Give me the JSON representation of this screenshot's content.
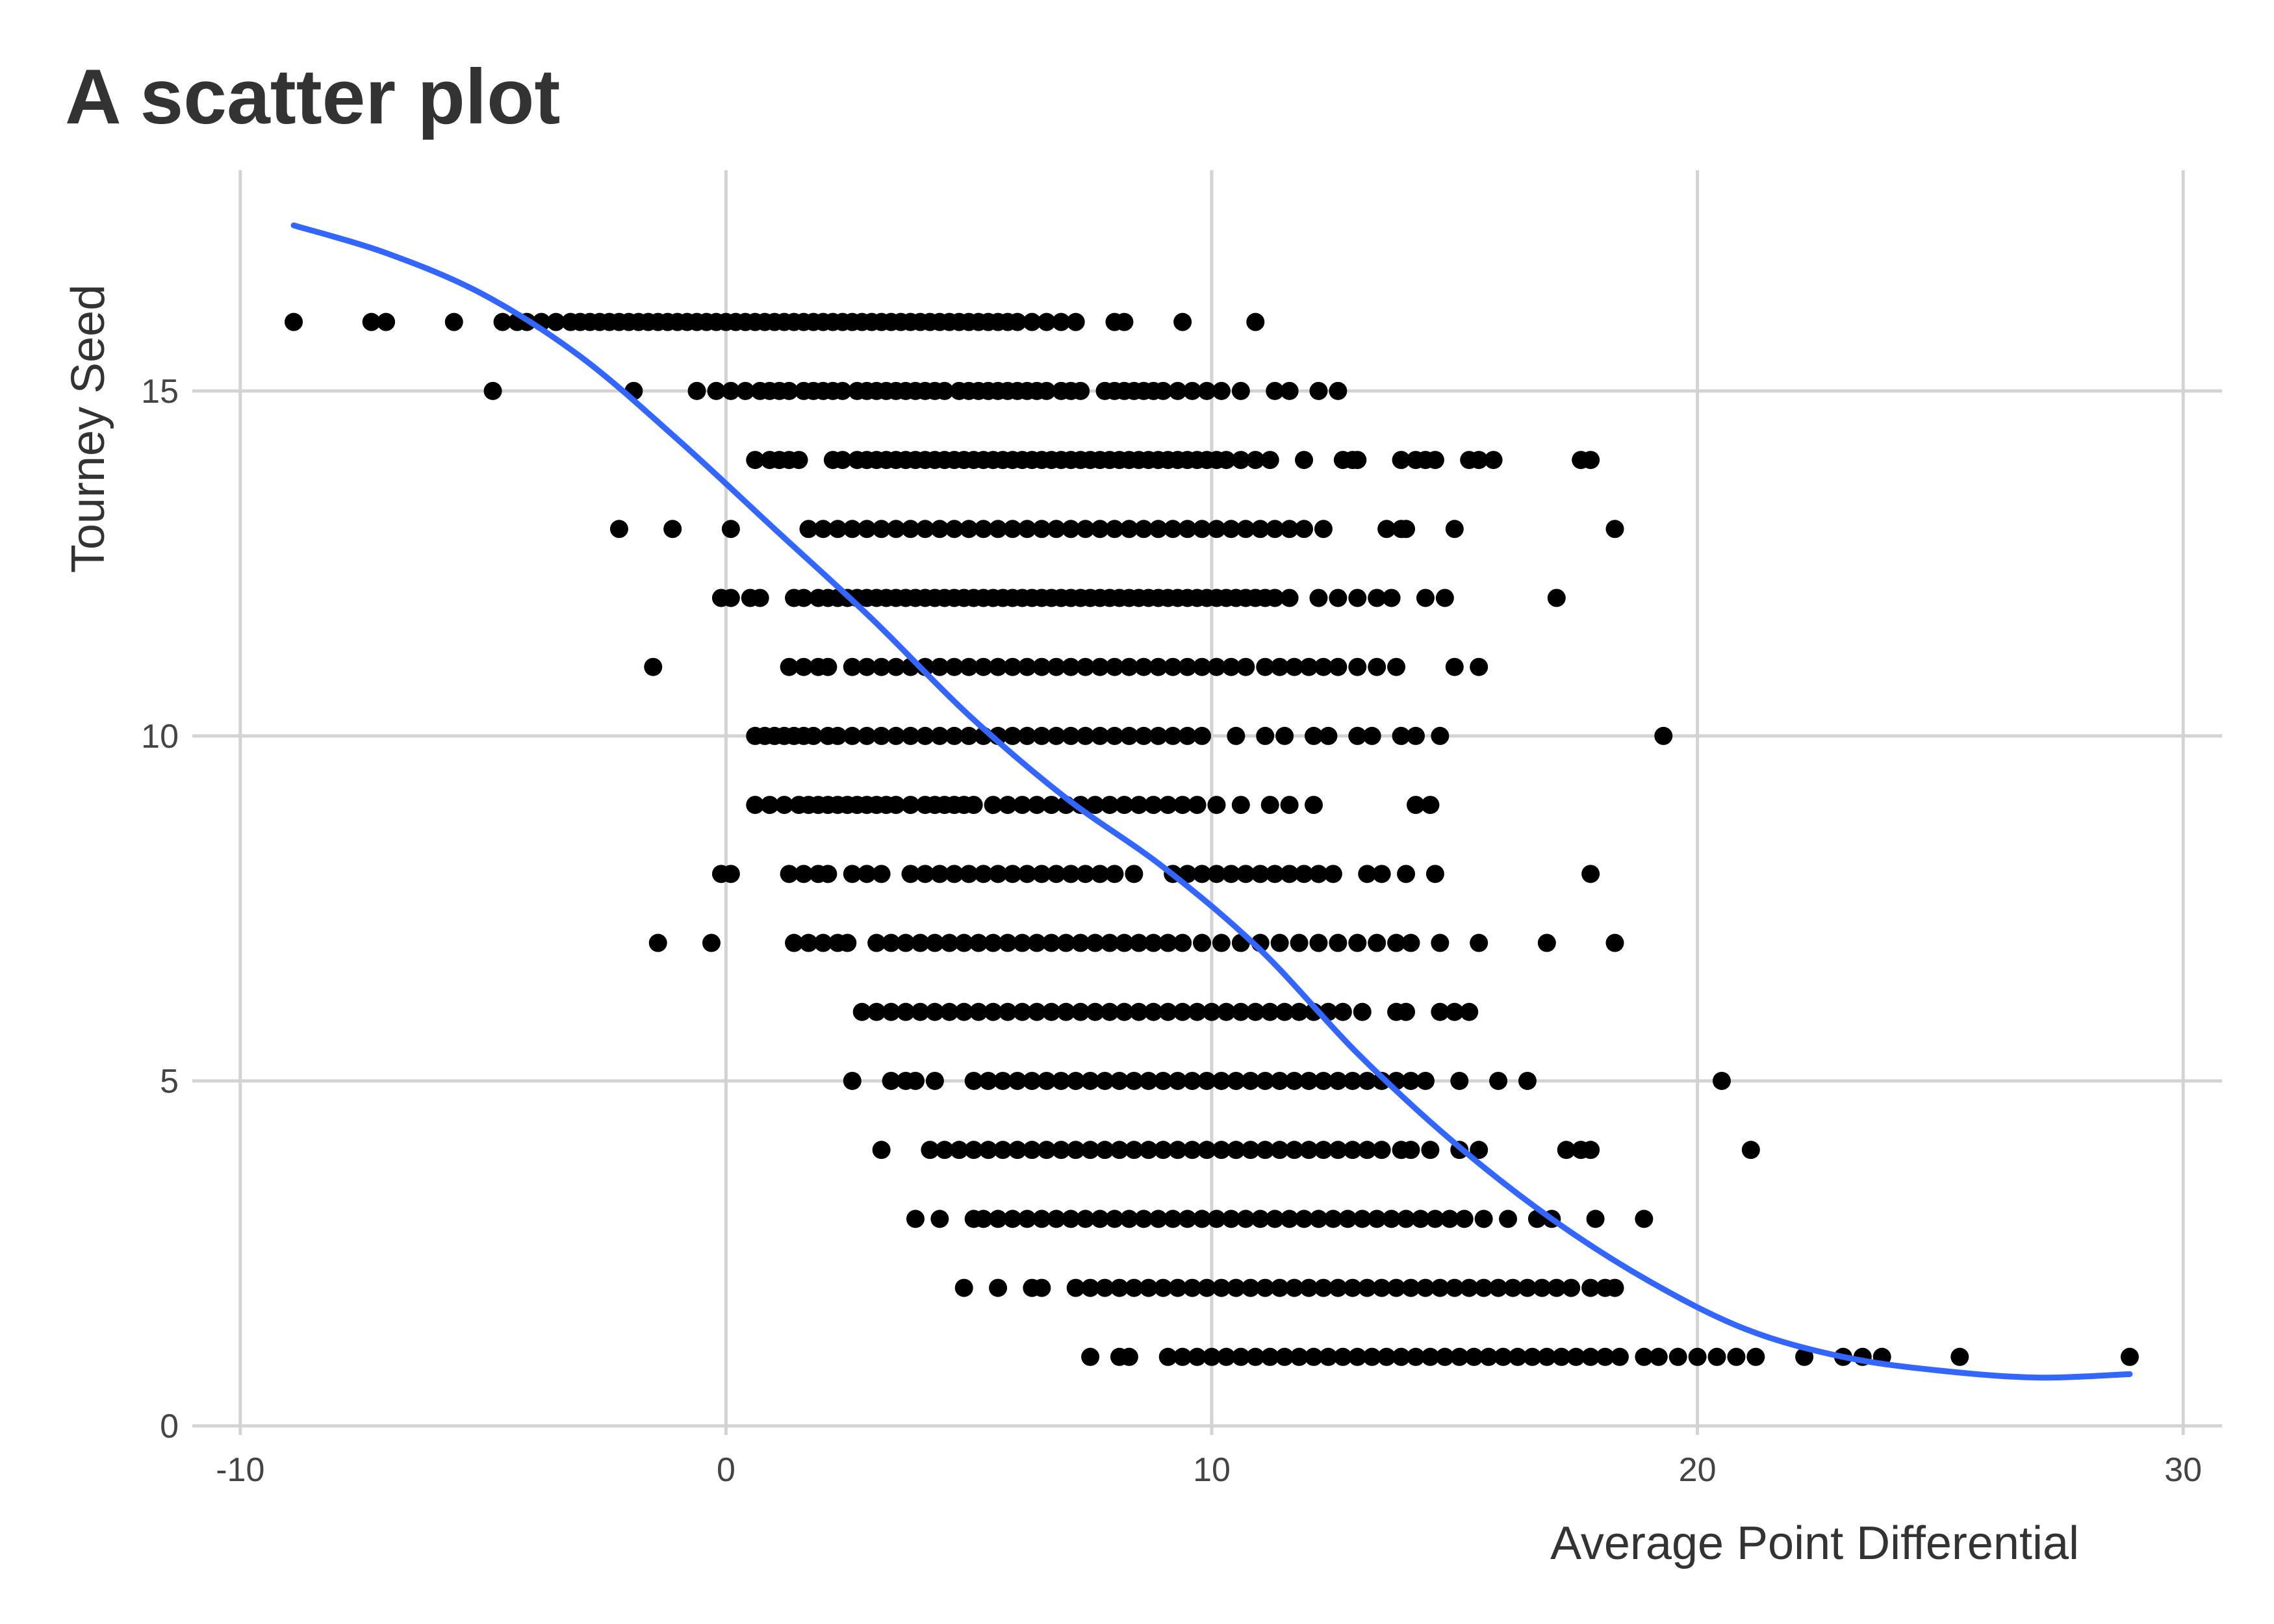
{
  "chart_data": {
    "type": "scatter",
    "title": "A scatter plot",
    "xlabel": "Average Point Differential",
    "ylabel": "Tourney Seed",
    "xlim": [
      -10.8,
      30.8
    ],
    "ylim": [
      0,
      18.2
    ],
    "x_ticks": [
      {
        "value": -10,
        "label": "-10"
      },
      {
        "value": 0,
        "label": "0"
      },
      {
        "value": 10,
        "label": "10"
      },
      {
        "value": 20,
        "label": "20"
      },
      {
        "value": 30,
        "label": "30"
      }
    ],
    "y_ticks": [
      {
        "value": 0,
        "label": "0"
      },
      {
        "value": 5,
        "label": "5"
      },
      {
        "value": 10,
        "label": "10"
      },
      {
        "value": 15,
        "label": "15"
      }
    ],
    "grid": true,
    "legend": "none",
    "point_color": "#000000",
    "trend_color": "#3366ff",
    "points_by_seed": [
      {
        "seed": 16,
        "x": [
          -8.9,
          -7.3,
          -7.0,
          -5.6,
          -4.6,
          -4.3,
          -4.1,
          -3.8,
          -3.5,
          -3.2,
          -3.0,
          -2.8,
          -2.6,
          -2.4,
          -2.2,
          -2.0,
          -1.8,
          -1.6,
          -1.4,
          -1.2,
          -1.0,
          -0.8,
          -0.6,
          -0.4,
          -0.2,
          0.0,
          0.2,
          0.4,
          0.6,
          0.8,
          1.0,
          1.2,
          1.4,
          1.6,
          1.8,
          2.0,
          2.2,
          2.4,
          2.6,
          2.8,
          3.0,
          3.2,
          3.4,
          3.6,
          3.8,
          4.0,
          4.2,
          4.4,
          4.6,
          4.8,
          5.0,
          5.2,
          5.4,
          5.6,
          5.8,
          6.0,
          6.3,
          6.6,
          6.9,
          7.2,
          8.0,
          8.2,
          9.4,
          10.9
        ]
      },
      {
        "seed": 15,
        "x": [
          -4.8,
          -1.9,
          -0.6,
          -0.2,
          0.1,
          0.4,
          0.7,
          0.9,
          1.1,
          1.3,
          1.6,
          1.8,
          2.0,
          2.2,
          2.4,
          2.7,
          2.9,
          3.1,
          3.3,
          3.5,
          3.7,
          3.9,
          4.1,
          4.3,
          4.5,
          4.8,
          5.0,
          5.2,
          5.4,
          5.6,
          5.8,
          6.0,
          6.2,
          6.4,
          6.6,
          6.9,
          7.1,
          7.3,
          7.8,
          8.0,
          8.2,
          8.4,
          8.6,
          8.8,
          9.0,
          9.3,
          9.6,
          9.9,
          10.2,
          10.6,
          11.3,
          11.6,
          12.2,
          12.6
        ]
      },
      {
        "seed": 14,
        "x": [
          0.6,
          0.9,
          1.1,
          1.3,
          1.5,
          2.2,
          2.4,
          2.7,
          2.9,
          3.1,
          3.3,
          3.5,
          3.7,
          3.9,
          4.1,
          4.3,
          4.5,
          4.7,
          4.9,
          5.1,
          5.3,
          5.5,
          5.7,
          5.9,
          6.1,
          6.3,
          6.5,
          6.7,
          6.9,
          7.1,
          7.3,
          7.5,
          7.7,
          7.9,
          8.1,
          8.3,
          8.5,
          8.7,
          8.9,
          9.1,
          9.3,
          9.5,
          9.7,
          9.9,
          10.1,
          10.3,
          10.6,
          10.9,
          11.2,
          11.9,
          12.7,
          12.9,
          13.0,
          13.9,
          14.2,
          14.4,
          14.6,
          15.3,
          15.5,
          15.8,
          17.6,
          17.8
        ]
      },
      {
        "seed": 13,
        "x": [
          -2.2,
          -1.1,
          0.1,
          1.7,
          2.0,
          2.3,
          2.6,
          2.9,
          3.2,
          3.5,
          3.8,
          4.1,
          4.4,
          4.7,
          5.0,
          5.3,
          5.6,
          5.9,
          6.2,
          6.5,
          6.8,
          7.1,
          7.4,
          7.7,
          8.0,
          8.3,
          8.6,
          8.9,
          9.2,
          9.5,
          9.8,
          10.1,
          10.4,
          10.7,
          11.0,
          11.3,
          11.6,
          11.9,
          12.3,
          13.6,
          13.9,
          14.0,
          15.0,
          18.3
        ]
      },
      {
        "seed": 12,
        "x": [
          -0.1,
          0.1,
          0.5,
          0.7,
          1.4,
          1.6,
          1.9,
          2.1,
          2.3,
          2.5,
          2.7,
          2.9,
          3.1,
          3.3,
          3.5,
          3.7,
          3.9,
          4.1,
          4.3,
          4.5,
          4.7,
          4.9,
          5.1,
          5.3,
          5.5,
          5.7,
          5.9,
          6.1,
          6.3,
          6.5,
          6.7,
          6.9,
          7.1,
          7.3,
          7.5,
          7.7,
          7.9,
          8.1,
          8.3,
          8.5,
          8.7,
          8.9,
          9.1,
          9.3,
          9.5,
          9.7,
          9.9,
          10.1,
          10.3,
          10.5,
          10.7,
          10.9,
          11.1,
          11.3,
          11.6,
          12.2,
          12.6,
          13.0,
          13.4,
          13.7,
          14.4,
          14.8,
          17.1
        ]
      },
      {
        "seed": 11,
        "x": [
          -1.5,
          1.3,
          1.6,
          1.9,
          2.1,
          2.6,
          2.9,
          3.2,
          3.5,
          3.8,
          4.1,
          4.4,
          4.7,
          5.0,
          5.3,
          5.6,
          5.9,
          6.2,
          6.5,
          6.8,
          7.1,
          7.4,
          7.7,
          8.0,
          8.3,
          8.6,
          8.9,
          9.2,
          9.5,
          9.8,
          10.1,
          10.4,
          10.7,
          11.1,
          11.4,
          11.7,
          12.0,
          12.3,
          12.6,
          13.0,
          13.4,
          13.8,
          15.0,
          15.5
        ]
      },
      {
        "seed": 10,
        "x": [
          0.6,
          0.8,
          1.0,
          1.2,
          1.4,
          1.6,
          1.8,
          2.1,
          2.3,
          2.6,
          2.9,
          3.2,
          3.5,
          3.8,
          4.1,
          4.4,
          4.7,
          5.0,
          5.3,
          5.6,
          5.9,
          6.2,
          6.5,
          6.8,
          7.1,
          7.4,
          7.7,
          8.0,
          8.3,
          8.6,
          8.9,
          9.2,
          9.5,
          9.8,
          10.5,
          11.1,
          11.5,
          12.1,
          12.4,
          13.0,
          13.3,
          13.9,
          14.2,
          14.7,
          19.3
        ]
      },
      {
        "seed": 9,
        "x": [
          0.6,
          0.9,
          1.2,
          1.5,
          1.7,
          1.9,
          2.1,
          2.3,
          2.5,
          2.7,
          2.9,
          3.1,
          3.3,
          3.5,
          3.8,
          4.1,
          4.3,
          4.5,
          4.7,
          4.9,
          5.1,
          5.5,
          5.8,
          6.1,
          6.4,
          6.7,
          7.0,
          7.3,
          7.6,
          7.9,
          8.2,
          8.5,
          8.8,
          9.1,
          9.4,
          9.7,
          10.1,
          10.6,
          11.2,
          11.6,
          12.1,
          14.2,
          14.5
        ]
      },
      {
        "seed": 8,
        "x": [
          -0.1,
          0.1,
          1.3,
          1.6,
          1.9,
          2.1,
          2.6,
          2.9,
          3.2,
          3.8,
          4.1,
          4.4,
          4.7,
          5.0,
          5.3,
          5.6,
          5.9,
          6.2,
          6.5,
          6.8,
          7.1,
          7.4,
          7.7,
          8.0,
          8.4,
          9.2,
          9.5,
          9.8,
          10.1,
          10.4,
          10.7,
          11.0,
          11.3,
          11.6,
          11.9,
          12.2,
          12.5,
          13.2,
          13.5,
          14.0,
          14.6,
          17.8
        ]
      },
      {
        "seed": 7,
        "x": [
          -1.4,
          -0.3,
          1.4,
          1.7,
          2.0,
          2.3,
          2.5,
          3.1,
          3.4,
          3.7,
          4.0,
          4.3,
          4.6,
          4.9,
          5.2,
          5.5,
          5.8,
          6.1,
          6.4,
          6.7,
          7.0,
          7.3,
          7.6,
          7.9,
          8.2,
          8.5,
          8.8,
          9.1,
          9.4,
          9.8,
          10.2,
          10.6,
          11.0,
          11.4,
          11.8,
          12.2,
          12.6,
          13.0,
          13.4,
          13.8,
          14.1,
          14.7,
          15.5,
          16.9,
          18.3
        ]
      },
      {
        "seed": 6,
        "x": [
          2.8,
          3.1,
          3.4,
          3.7,
          4.0,
          4.3,
          4.6,
          4.9,
          5.2,
          5.5,
          5.8,
          6.1,
          6.4,
          6.7,
          7.0,
          7.3,
          7.6,
          7.9,
          8.2,
          8.5,
          8.8,
          9.1,
          9.4,
          9.7,
          10.0,
          10.3,
          10.6,
          10.9,
          11.2,
          11.5,
          11.8,
          12.1,
          12.4,
          12.7,
          13.1,
          13.8,
          14.0,
          14.7,
          15.0,
          15.3
        ]
      },
      {
        "seed": 5,
        "x": [
          2.6,
          3.4,
          3.7,
          3.9,
          4.3,
          5.1,
          5.4,
          5.7,
          6.0,
          6.3,
          6.6,
          6.9,
          7.2,
          7.5,
          7.8,
          8.1,
          8.4,
          8.7,
          9.0,
          9.3,
          9.6,
          9.9,
          10.2,
          10.5,
          10.8,
          11.1,
          11.4,
          11.7,
          12.0,
          12.3,
          12.6,
          12.9,
          13.2,
          13.5,
          13.8,
          14.1,
          14.4,
          15.1,
          15.9,
          16.5,
          20.5
        ]
      },
      {
        "seed": 4,
        "x": [
          3.2,
          4.2,
          4.5,
          4.8,
          5.1,
          5.4,
          5.7,
          6.0,
          6.3,
          6.6,
          6.9,
          7.2,
          7.5,
          7.8,
          8.1,
          8.4,
          8.7,
          9.0,
          9.3,
          9.6,
          9.9,
          10.2,
          10.5,
          10.8,
          11.1,
          11.4,
          11.7,
          12.0,
          12.3,
          12.6,
          12.9,
          13.2,
          13.5,
          13.9,
          14.1,
          14.5,
          15.1,
          15.5,
          17.3,
          17.6,
          17.8,
          21.1
        ]
      },
      {
        "seed": 3,
        "x": [
          3.9,
          4.4,
          5.1,
          5.3,
          5.6,
          5.9,
          6.2,
          6.5,
          6.8,
          7.1,
          7.4,
          7.7,
          8.0,
          8.3,
          8.6,
          8.9,
          9.2,
          9.5,
          9.8,
          10.1,
          10.4,
          10.7,
          11.0,
          11.3,
          11.6,
          11.9,
          12.2,
          12.5,
          12.8,
          13.1,
          13.4,
          13.7,
          14.0,
          14.3,
          14.6,
          14.9,
          15.2,
          15.6,
          16.1,
          16.7,
          17.0,
          17.9,
          18.9
        ]
      },
      {
        "seed": 2,
        "x": [
          4.9,
          5.6,
          6.3,
          6.5,
          7.2,
          7.5,
          7.8,
          8.1,
          8.4,
          8.7,
          9.0,
          9.3,
          9.6,
          9.9,
          10.2,
          10.5,
          10.8,
          11.1,
          11.4,
          11.7,
          12.0,
          12.3,
          12.6,
          12.9,
          13.2,
          13.5,
          13.8,
          14.1,
          14.4,
          14.7,
          15.0,
          15.3,
          15.6,
          15.9,
          16.2,
          16.5,
          16.8,
          17.1,
          17.4,
          17.8,
          18.1,
          18.3
        ]
      },
      {
        "seed": 1,
        "x": [
          7.5,
          8.1,
          8.3,
          9.1,
          9.4,
          9.7,
          10.0,
          10.3,
          10.6,
          10.9,
          11.2,
          11.5,
          11.8,
          12.1,
          12.4,
          12.7,
          13.0,
          13.3,
          13.6,
          13.9,
          14.2,
          14.5,
          14.8,
          15.1,
          15.4,
          15.7,
          16.0,
          16.3,
          16.6,
          16.9,
          17.2,
          17.5,
          17.8,
          18.1,
          18.4,
          18.9,
          19.2,
          19.6,
          20.0,
          20.4,
          20.8,
          21.2,
          22.2,
          23.0,
          23.4,
          23.8,
          25.4,
          28.9
        ]
      }
    ],
    "smooth_line": {
      "x": [
        -8.9,
        -7,
        -5,
        -3,
        -1,
        1,
        3,
        5,
        7,
        9,
        11,
        13,
        15,
        17,
        19,
        21,
        23,
        25,
        27,
        28.9
      ],
      "y": [
        17.4,
        17.0,
        16.4,
        15.5,
        14.3,
        13.0,
        11.7,
        10.3,
        9.1,
        8.1,
        6.9,
        5.4,
        4.1,
        3.0,
        2.1,
        1.4,
        1.0,
        0.8,
        0.7,
        0.75
      ]
    }
  }
}
